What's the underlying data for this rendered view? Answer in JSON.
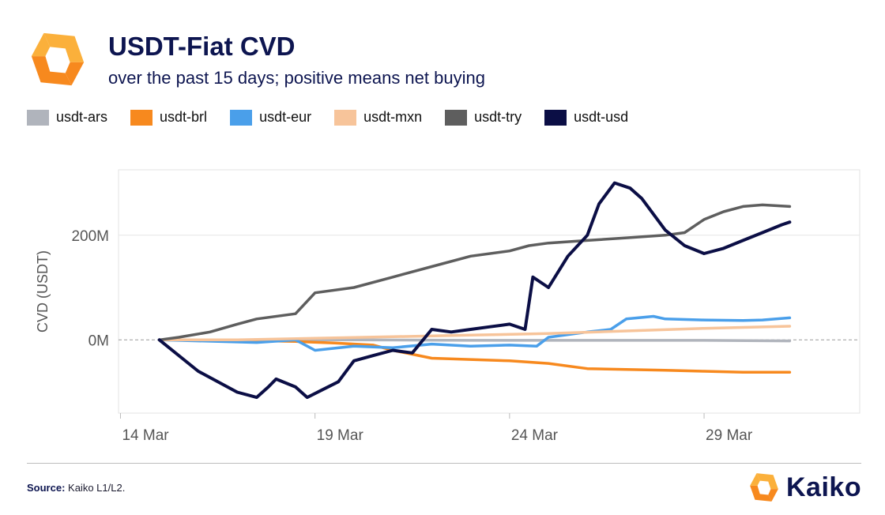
{
  "header": {
    "title": "USDT-Fiat CVD",
    "subtitle": "over the past 15 days; positive means net buying"
  },
  "colors": {
    "usdt-ars": "#b0b4bc",
    "usdt-brl": "#f7891e",
    "usdt-eur": "#4a9fea",
    "usdt-mxn": "#f7c49a",
    "usdt-try": "#5e5e5e",
    "usdt-usd": "#0b0e45",
    "logo_orange": "#f7891e",
    "logo_yellow": "#fbb03b"
  },
  "footer": {
    "source_label": "Source:",
    "source_text": "Kaiko L1/L2.",
    "brand": "Kaiko"
  },
  "chart_data": {
    "type": "line",
    "title": "USDT-Fiat CVD",
    "xlabel": "",
    "ylabel": "CVD (USDT)",
    "x_ticks": [
      "14 Mar",
      "19 Mar",
      "24 Mar",
      "29 Mar"
    ],
    "x_tick_days": [
      0,
      5,
      10,
      15
    ],
    "y_ticks": [
      {
        "value": 0,
        "label": "0M"
      },
      {
        "value": 200,
        "label": "200M"
      }
    ],
    "xlim": [
      -0.05,
      19
    ],
    "ylim": [
      -140,
      325
    ],
    "grid": true,
    "legend": "top",
    "series": [
      {
        "name": "usdt-ars",
        "x": [
          1,
          3,
          6,
          9,
          12,
          15,
          17.2
        ],
        "values": [
          0,
          0,
          0,
          -1,
          -1,
          -1,
          -2
        ]
      },
      {
        "name": "usdt-brl",
        "x": [
          1,
          3,
          4.5,
          5.5,
          6.5,
          7,
          8,
          10,
          11,
          12,
          14,
          15,
          16,
          17.2
        ],
        "values": [
          0,
          -1,
          -3,
          -6,
          -10,
          -20,
          -35,
          -40,
          -45,
          -55,
          -58,
          -60,
          -62,
          -62
        ]
      },
      {
        "name": "usdt-eur",
        "x": [
          1,
          2,
          3.5,
          4.5,
          5,
          6,
          7,
          8,
          9,
          10,
          10.7,
          11,
          12,
          12.6,
          13,
          13.7,
          14,
          15,
          16,
          16.5,
          17.2
        ],
        "values": [
          0,
          -2,
          -5,
          0,
          -20,
          -12,
          -15,
          -8,
          -12,
          -10,
          -12,
          5,
          15,
          20,
          40,
          45,
          40,
          38,
          37,
          38,
          42
        ]
      },
      {
        "name": "usdt-mxn",
        "x": [
          1,
          3,
          5,
          7,
          9,
          11,
          13,
          15,
          17.2
        ],
        "values": [
          0,
          0,
          3,
          6,
          9,
          12,
          17,
          22,
          26
        ]
      },
      {
        "name": "usdt-try",
        "x": [
          1,
          1.5,
          2.3,
          3,
          3.5,
          4.5,
          5,
          6,
          7,
          8,
          9,
          10,
          10.5,
          11,
          12,
          13,
          14,
          14.5,
          15,
          15.5,
          16,
          16.5,
          17.2
        ],
        "values": [
          0,
          5,
          15,
          30,
          40,
          50,
          90,
          100,
          120,
          140,
          160,
          170,
          180,
          185,
          190,
          195,
          200,
          205,
          230,
          245,
          255,
          258,
          255
        ]
      },
      {
        "name": "usdt-usd",
        "x": [
          1,
          2,
          3,
          3.5,
          3.8,
          4,
          4.5,
          4.8,
          5.2,
          5.6,
          6,
          6.5,
          7,
          7.5,
          8,
          8.5,
          9,
          9.5,
          10,
          10.4,
          10.6,
          10.8,
          11,
          11.5,
          12,
          12.3,
          12.7,
          13.1,
          13.4,
          14,
          14.5,
          15,
          15.5,
          16,
          16.5,
          17,
          17.2
        ],
        "values": [
          0,
          -60,
          -100,
          -110,
          -90,
          -75,
          -90,
          -110,
          -95,
          -80,
          -40,
          -30,
          -20,
          -25,
          20,
          15,
          20,
          25,
          30,
          20,
          120,
          110,
          100,
          160,
          200,
          260,
          300,
          290,
          270,
          210,
          180,
          165,
          175,
          190,
          205,
          220,
          225
        ]
      }
    ]
  }
}
